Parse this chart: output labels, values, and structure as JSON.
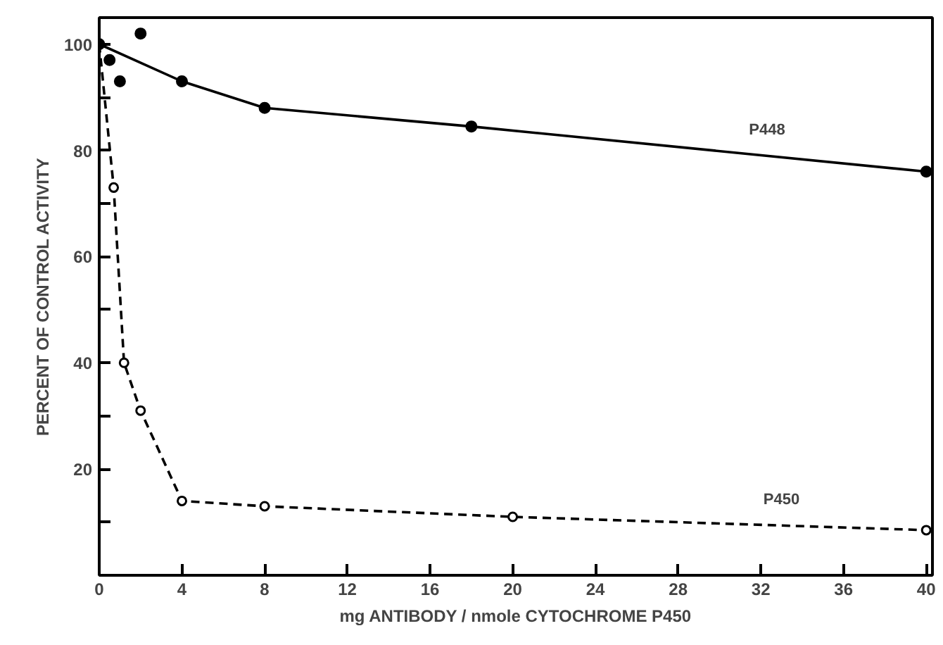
{
  "chart_data": {
    "type": "line",
    "xlabel": "mg ANTIBODY / nmole CYTOCHROME P450",
    "ylabel": "PERCENT OF CONTROL ACTIVITY",
    "xlim": [
      0,
      40.3
    ],
    "ylim": [
      0,
      105
    ],
    "xticks": [
      0,
      4,
      8,
      12,
      16,
      20,
      24,
      28,
      32,
      36,
      40
    ],
    "yticks": [
      {
        "value": 10,
        "label": null
      },
      20,
      {
        "value": 30,
        "label": null
      },
      40,
      {
        "value": 50,
        "label": null
      },
      60,
      {
        "value": 70,
        "label": null
      },
      80,
      {
        "value": 90,
        "label": null
      },
      100
    ],
    "grid": false,
    "series": [
      {
        "name": "P448",
        "color": "#000000",
        "marker": "circle",
        "line_style": "solid",
        "x": [
          0,
          4,
          8,
          18,
          40
        ],
        "values": [
          100,
          93,
          88,
          84.5,
          76
        ]
      },
      {
        "type": "scatter",
        "color": "#000000",
        "marker": "circle",
        "x": [
          0.5,
          1,
          2
        ],
        "values": [
          97,
          93,
          102
        ]
      },
      {
        "name": "P450",
        "type": "line",
        "color": "#000000",
        "marker": "open_circle",
        "line_style": "dashed",
        "x": [
          0,
          0.7,
          1.2,
          2,
          4,
          8,
          20,
          40
        ],
        "values": [
          100,
          73,
          40,
          31,
          14,
          13,
          11,
          8.5
        ]
      }
    ]
  }
}
